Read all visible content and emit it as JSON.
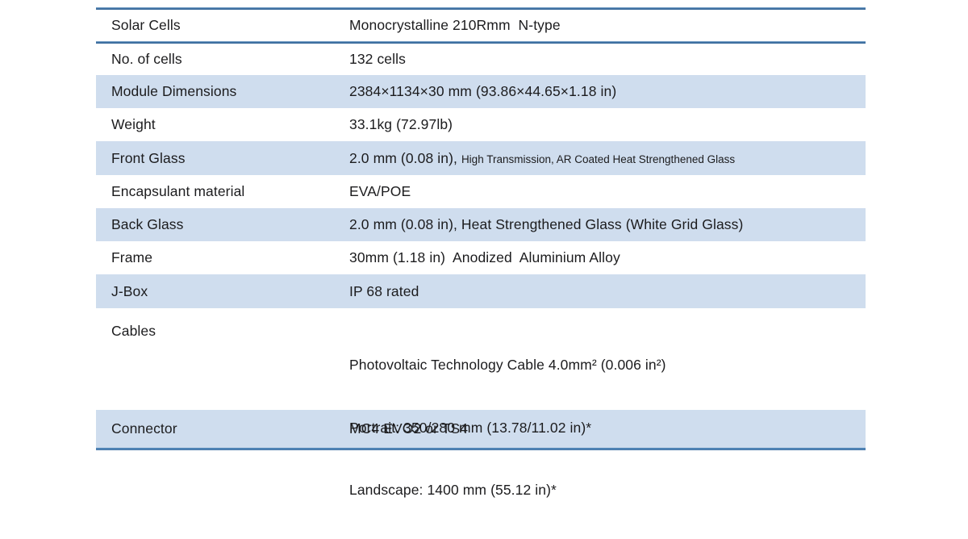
{
  "colors": {
    "row_shade": "#cfddee",
    "rule_blue": "#2a5f94",
    "text": "#1c1c1e",
    "background": "#ffffff"
  },
  "table": {
    "rows": [
      {
        "label": "Solar Cells",
        "value": "Monocrystalline 210Rmm  N-type"
      },
      {
        "label": "No. of cells",
        "value": "132 cells"
      },
      {
        "label": "Module Dimensions",
        "value": "2384×1134×30 mm (93.86×44.65×1.18 in)"
      },
      {
        "label": "Weight",
        "value": "33.1kg (72.97lb)"
      },
      {
        "label": "Front Glass",
        "value": "2.0 mm (0.08 in), ",
        "value_small": "High Transmission, AR Coated Heat Strengthened Glass"
      },
      {
        "label": "Encapsulant material",
        "value": "EVA/POE"
      },
      {
        "label": "Back Glass",
        "value": "2.0 mm (0.08 in), Heat Strengthened Glass (White Grid Glass)"
      },
      {
        "label": "Frame",
        "value": "30mm (1.18 in)  Anodized  Aluminium Alloy"
      },
      {
        "label": "J-Box",
        "value": "IP 68 rated"
      },
      {
        "label": "Cables",
        "value_lines": [
          "Photovoltaic Technology Cable 4.0mm² (0.006 in²)",
          "Portrait: 350/280 mm (13.78/11.02 in)*",
          "Landscape: 1400 mm (55.12 in)*"
        ]
      },
      {
        "label": "Connector",
        "value": "MC4 EVO2 or TS4"
      }
    ]
  }
}
